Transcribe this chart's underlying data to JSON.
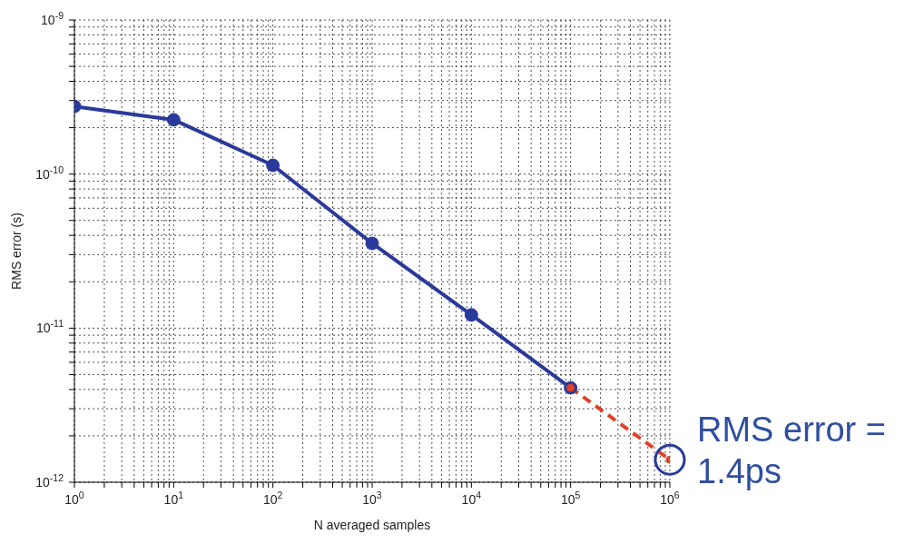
{
  "chart_data": {
    "type": "line",
    "xlabel": "N averaged samples",
    "ylabel": "RMS error (s)",
    "log": "xy",
    "grid": true,
    "xlim": [
      1,
      1000000
    ],
    "xticks": [
      {
        "value": 1,
        "label": "10$^{0}$"
      },
      {
        "value": 2,
        "label": null
      },
      {
        "value": 3,
        "label": null
      },
      {
        "value": 4,
        "label": null
      },
      {
        "value": 5,
        "label": null
      },
      {
        "value": 6,
        "label": null
      },
      {
        "value": 7,
        "label": null
      },
      {
        "value": 8,
        "label": null
      },
      {
        "value": 9,
        "label": null
      },
      {
        "value": 10,
        "label": "10$^{1}$"
      },
      {
        "value": 20,
        "label": null
      },
      {
        "value": 30,
        "label": null
      },
      {
        "value": 40,
        "label": null
      },
      {
        "value": 50,
        "label": null
      },
      {
        "value": 60,
        "label": null
      },
      {
        "value": 70,
        "label": null
      },
      {
        "value": 80,
        "label": null
      },
      {
        "value": 90,
        "label": null
      },
      {
        "value": 100,
        "label": "10$^{2}$"
      },
      {
        "value": 200,
        "label": null
      },
      {
        "value": 300,
        "label": null
      },
      {
        "value": 400,
        "label": null
      },
      {
        "value": 500,
        "label": null
      },
      {
        "value": 600,
        "label": null
      },
      {
        "value": 700,
        "label": null
      },
      {
        "value": 800,
        "label": null
      },
      {
        "value": 900,
        "label": null
      },
      {
        "value": 1000,
        "label": "10$^{3}$"
      },
      {
        "value": 2000,
        "label": null
      },
      {
        "value": 3000,
        "label": null
      },
      {
        "value": 4000,
        "label": null
      },
      {
        "value": 5000,
        "label": null
      },
      {
        "value": 6000,
        "label": null
      },
      {
        "value": 7000,
        "label": null
      },
      {
        "value": 8000,
        "label": null
      },
      {
        "value": 9000,
        "label": null
      },
      {
        "value": 10000,
        "label": "10$^{4}$"
      },
      {
        "value": 20000,
        "label": null
      },
      {
        "value": 30000,
        "label": null
      },
      {
        "value": 40000,
        "label": null
      },
      {
        "value": 50000,
        "label": null
      },
      {
        "value": 60000,
        "label": null
      },
      {
        "value": 70000,
        "label": null
      },
      {
        "value": 80000,
        "label": null
      },
      {
        "value": 90000,
        "label": null
      },
      {
        "value": 100000,
        "label": "10$^{5}$"
      },
      {
        "value": 200000,
        "label": null
      },
      {
        "value": 300000,
        "label": null
      },
      {
        "value": 400000,
        "label": null
      },
      {
        "value": 500000,
        "label": null
      },
      {
        "value": 600000,
        "label": null
      },
      {
        "value": 700000,
        "label": null
      },
      {
        "value": 800000,
        "label": null
      },
      {
        "value": 900000,
        "label": null
      },
      {
        "value": 1000000,
        "label": "10$^{6}$"
      }
    ],
    "ylim": [
      1e-12,
      1e-09
    ],
    "yticks": [
      {
        "value": 1e-12,
        "label": "10$^{-12}$"
      },
      {
        "value": 2e-12,
        "label": null
      },
      {
        "value": 3e-12,
        "label": null
      },
      {
        "value": 4e-12,
        "label": null
      },
      {
        "value": 5e-12,
        "label": null
      },
      {
        "value": 6e-12,
        "label": null
      },
      {
        "value": 7e-12,
        "label": null
      },
      {
        "value": 8e-12,
        "label": null
      },
      {
        "value": 9e-12,
        "label": null
      },
      {
        "value": 1e-11,
        "label": "10$^{-11}$"
      },
      {
        "value": 2e-11,
        "label": null
      },
      {
        "value": 3e-11,
        "label": null
      },
      {
        "value": 4e-11,
        "label": null
      },
      {
        "value": 5e-11,
        "label": null
      },
      {
        "value": 6e-11,
        "label": null
      },
      {
        "value": 7e-11,
        "label": null
      },
      {
        "value": 8e-11,
        "label": null
      },
      {
        "value": 9e-11,
        "label": null
      },
      {
        "value": 1e-10,
        "label": "10$^{-10}$"
      },
      {
        "value": 2e-10,
        "label": null
      },
      {
        "value": 3e-10,
        "label": null
      },
      {
        "value": 4e-10,
        "label": null
      },
      {
        "value": 5e-10,
        "label": null
      },
      {
        "value": 6e-10,
        "label": null
      },
      {
        "value": 7e-10,
        "label": null
      },
      {
        "value": 8e-10,
        "label": null
      },
      {
        "value": 9e-10,
        "label": null
      },
      {
        "value": 1e-09,
        "label": "10$^{-9}$"
      }
    ],
    "series": [
      {
        "color": "#2a3a9a",
        "x": [
          1,
          10,
          100,
          1000,
          10000,
          100000
        ],
        "values": [
          2.75e-10,
          2.25e-10,
          1.14e-10,
          3.55e-11,
          1.22e-11,
          4.1e-12
        ],
        "line_style": "solid",
        "marker": "circle"
      },
      {
        "color": "#e0402a",
        "x": [
          100000,
          1000000
        ],
        "values": [
          4.1e-12,
          1.4e-12
        ],
        "line_style": "dashed",
        "marker": "circle"
      }
    ],
    "annotations": [
      "RMS error = 1.4ps"
    ]
  }
}
